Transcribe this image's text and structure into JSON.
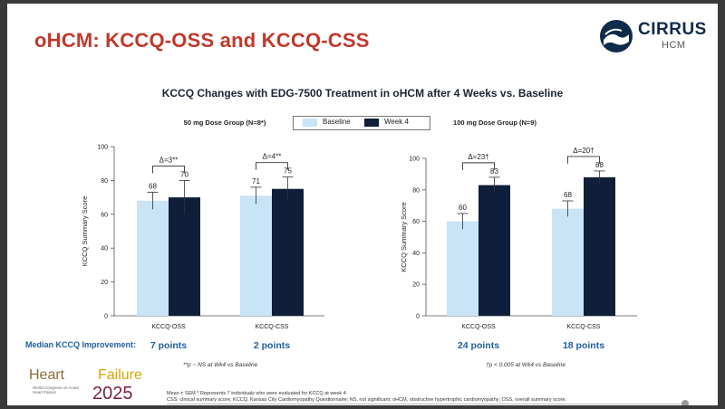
{
  "slide_title": "oHCM: KCCQ-OSS and KCCQ-CSS",
  "logo": {
    "name": "CIRRUS",
    "sub": "HCM"
  },
  "chart_title": "KCCQ Changes with EDG-7500 Treatment in oHCM after 4 Weeks vs. Baseline",
  "legend": [
    {
      "label": "Baseline",
      "color": "#c9e3f7"
    },
    {
      "label": "Week 4",
      "color": "#0f1f3a"
    }
  ],
  "colors": {
    "baseline": "#c9e3f7",
    "week4": "#0f1f3a",
    "accent_red": "#c0392b",
    "accent_blue": "#1f5fa0"
  },
  "chart_data": [
    {
      "type": "bar",
      "title": "50 mg Dose Group (N=8*)",
      "ylabel": "KCCQ Summary Score",
      "ylim": [
        0,
        100
      ],
      "yticks": [
        0,
        20,
        40,
        60,
        80,
        100
      ],
      "categories": [
        "KCCQ-OSS",
        "KCCQ-CSS"
      ],
      "series": [
        {
          "name": "Baseline",
          "values": [
            68,
            71
          ],
          "labels": [
            "68",
            "71"
          ],
          "err": [
            5,
            5
          ]
        },
        {
          "name": "Week 4",
          "values": [
            70,
            75
          ],
          "labels": [
            "70",
            "75"
          ],
          "err": [
            10,
            7
          ]
        }
      ],
      "deltas": [
        "Δ=3**",
        "Δ=4**"
      ],
      "median_improvement": [
        "7 points",
        "2 points"
      ],
      "footnote": "**p ~ NS at Wk4 vs Baseline"
    },
    {
      "type": "bar",
      "title": "100 mg Dose Group (N=9)",
      "ylabel": "KCCQ Summary Score",
      "ylim": [
        0,
        100
      ],
      "yticks": [
        0,
        20,
        40,
        60,
        80,
        100
      ],
      "categories": [
        "KCCQ-OSS",
        "KCCQ-CSS"
      ],
      "series": [
        {
          "name": "Baseline",
          "values": [
            60,
            68
          ],
          "labels": [
            "60",
            "68"
          ],
          "err": [
            5,
            5
          ]
        },
        {
          "name": "Week 4",
          "values": [
            83,
            88
          ],
          "labels": [
            "83",
            "88"
          ],
          "err": [
            5,
            4
          ]
        }
      ],
      "deltas": [
        "Δ=23†",
        "Δ=20†"
      ],
      "median_improvement": [
        "24 points",
        "18 points"
      ],
      "footnote": "†p < 0.005 at Wk4 vs Baseline"
    }
  ],
  "median_label": "Median KCCQ Improvement:",
  "footer_notes": [
    "Mean ± SEM * Represents 7 individuals who were evaluated for KCCQ at week 4",
    "CSS: clinical summary score; KCCQ, Kansas City Cardiomyopathy Questionnaire; NS, not significant; oHCM, obstructive hypertrophic cardiomyopathy; OSS, overall summary score."
  ],
  "conference_logo": {
    "line1a": "Heart",
    "line1b": "Failure",
    "year": "2025",
    "sub": "World Congress on Acute Heart Failure"
  }
}
